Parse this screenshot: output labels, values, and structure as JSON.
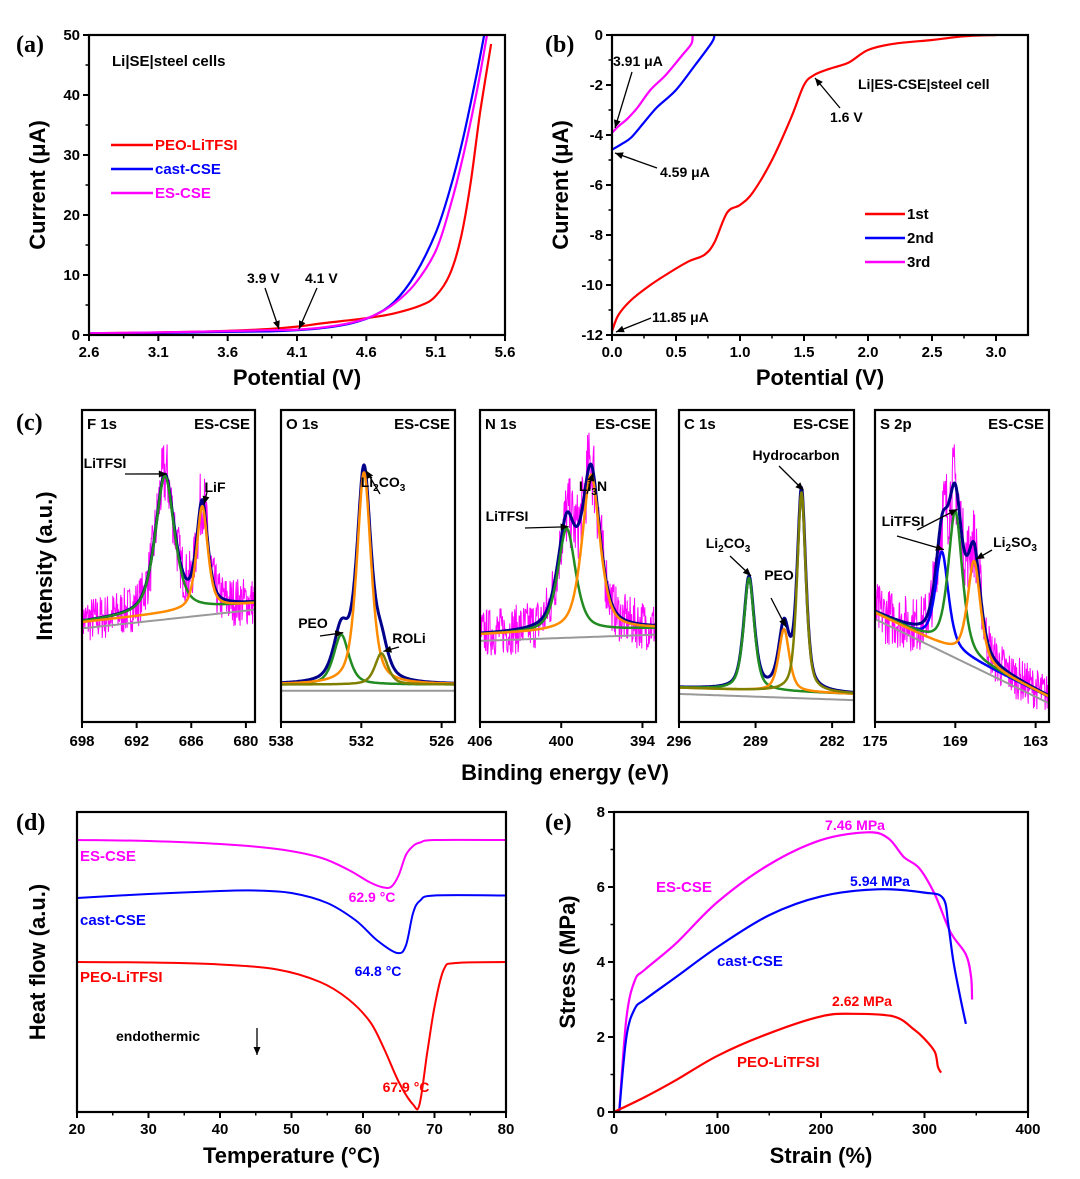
{
  "figure": {
    "panels": [
      "(a)",
      "(b)",
      "(c)",
      "(d)",
      "(e)"
    ]
  },
  "chart_data": [
    {
      "id": "a",
      "type": "line",
      "panel_label": "(a)",
      "title": "Li|SE|steel cells",
      "xlabel": "Potential (V)",
      "ylabel": "Current (μA)",
      "xlim": [
        2.6,
        5.6
      ],
      "ylim": [
        0,
        50
      ],
      "xticks": [
        "2.6",
        "3.1",
        "3.6",
        "4.1",
        "4.6",
        "5.1",
        "5.6"
      ],
      "yticks": [
        "0",
        "10",
        "20",
        "30",
        "40",
        "50"
      ],
      "legend_position": "center-left",
      "series": [
        {
          "name": "PEO-LiTFSI",
          "color": "#ff0000",
          "x": [
            2.6,
            3.0,
            3.5,
            3.9,
            4.1,
            4.3,
            4.6,
            4.8,
            5.0,
            5.1,
            5.2,
            5.28,
            5.35,
            5.42,
            5.5
          ],
          "y": [
            0.3,
            0.4,
            0.6,
            1.0,
            1.4,
            2.0,
            2.8,
            3.6,
            5.0,
            6.5,
            10,
            16,
            25,
            37,
            48.5
          ]
        },
        {
          "name": "cast-CSE",
          "color": "#0000ff",
          "x": [
            2.6,
            3.0,
            3.5,
            3.9,
            4.1,
            4.3,
            4.5,
            4.65,
            4.8,
            4.95,
            5.1,
            5.2,
            5.3,
            5.4,
            5.45
          ],
          "y": [
            0.3,
            0.3,
            0.5,
            0.6,
            0.8,
            1.2,
            2.0,
            3.2,
            5.5,
            10,
            17,
            24,
            33,
            44,
            50
          ]
        },
        {
          "name": "ES-CSE",
          "color": "#ff00ff",
          "x": [
            2.6,
            3.0,
            3.5,
            3.9,
            4.1,
            4.3,
            4.5,
            4.65,
            4.8,
            4.95,
            5.1,
            5.2,
            5.3,
            5.4,
            5.47
          ],
          "y": [
            0.3,
            0.4,
            0.6,
            0.8,
            0.9,
            1.3,
            2.1,
            3.2,
            5.2,
            8.5,
            14,
            21,
            30,
            41,
            50
          ]
        }
      ],
      "annotations": [
        {
          "text": "3.9 V",
          "x": 3.96,
          "y": 0.9
        },
        {
          "text": "4.1 V",
          "x": 4.1,
          "y": 1.3
        }
      ]
    },
    {
      "id": "b",
      "type": "line",
      "panel_label": "(b)",
      "title": "Li|ES-CSE|steel cell",
      "xlabel": "Potential (V)",
      "ylabel": "Current (μA)",
      "xlim": [
        0,
        3.25
      ],
      "ylim": [
        -12,
        0
      ],
      "xticks": [
        "0.0",
        "0.5",
        "1.0",
        "1.5",
        "2.0",
        "2.5",
        "3.0"
      ],
      "yticks": [
        "-12",
        "-10",
        "-8",
        "-6",
        "-4",
        "-2",
        "0"
      ],
      "legend_position": "bottom-right",
      "series": [
        {
          "name": "1st",
          "color": "#ff0000",
          "x": [
            0,
            0.05,
            0.15,
            0.3,
            0.45,
            0.6,
            0.72,
            0.8,
            0.9,
            1.0,
            1.1,
            1.25,
            1.4,
            1.5,
            1.58,
            1.7,
            1.85,
            2.0,
            2.2,
            2.5,
            2.75,
            3.0
          ],
          "y": [
            -11.85,
            -11.2,
            -10.6,
            -10.0,
            -9.5,
            -9.05,
            -8.8,
            -8.3,
            -7.1,
            -6.8,
            -6.3,
            -5.0,
            -3.3,
            -2.0,
            -1.6,
            -1.35,
            -1.1,
            -0.6,
            -0.35,
            -0.2,
            -0.05,
            0
          ]
        },
        {
          "name": "2nd",
          "color": "#0000ff",
          "x": [
            0,
            0.08,
            0.15,
            0.25,
            0.35,
            0.5,
            0.65,
            0.78,
            0.8
          ],
          "y": [
            -4.59,
            -4.35,
            -4.1,
            -3.5,
            -2.9,
            -2.2,
            -1.2,
            -0.3,
            0
          ]
        },
        {
          "name": "3rd",
          "color": "#ff00ff",
          "x": [
            0,
            0.05,
            0.12,
            0.2,
            0.3,
            0.42,
            0.55,
            0.62,
            0.63
          ],
          "y": [
            -3.91,
            -3.65,
            -3.35,
            -2.9,
            -2.2,
            -1.6,
            -0.8,
            -0.35,
            0
          ]
        }
      ],
      "annotations": [
        {
          "text": "3.91 μA",
          "x": 0.0,
          "y": -3.91
        },
        {
          "text": "4.59 μA",
          "x": 0.0,
          "y": -4.59
        },
        {
          "text": "11.85 μA",
          "x": 0.0,
          "y": -11.85
        },
        {
          "text": "1.6 V",
          "x": 1.58,
          "y": -1.6
        }
      ]
    },
    {
      "id": "c",
      "type": "line",
      "panel_label": "(c)",
      "xlabel": "Binding energy (eV)",
      "ylabel": "Intensity (a.u.)",
      "subplots": [
        {
          "name": "F 1s",
          "sample": "ES-CSE",
          "xlim": [
            698,
            679
          ],
          "xticks": [
            "698",
            "692",
            "686",
            "680"
          ],
          "peaks": [
            {
              "label": "LiTFSI",
              "center": 688.9,
              "color": "#228b22"
            },
            {
              "label": "LiF",
              "center": 684.8,
              "color": "#ff8c00"
            }
          ]
        },
        {
          "name": "O 1s",
          "sample": "ES-CSE",
          "xlim": [
            538,
            525
          ],
          "xticks": [
            "538",
            "532",
            "526"
          ],
          "peaks": [
            {
              "label": "PEO",
              "center": 533.5,
              "color": "#228b22"
            },
            {
              "label": "Li₂CO₃",
              "center": 531.8,
              "color": "#ff8c00"
            },
            {
              "label": "ROLi",
              "center": 530.5,
              "color": "#808000"
            }
          ]
        },
        {
          "name": "N 1s",
          "sample": "ES-CSE",
          "xlim": [
            406,
            393
          ],
          "xticks": [
            "406",
            "400",
            "394"
          ],
          "peaks": [
            {
              "label": "LiTFSI",
              "center": 399.6,
              "color": "#228b22"
            },
            {
              "label": "Li₃N",
              "center": 397.8,
              "color": "#ff8c00"
            }
          ]
        },
        {
          "name": "C 1s",
          "sample": "ES-CSE",
          "xlim": [
            296,
            280
          ],
          "xticks": [
            "296",
            "289",
            "282"
          ],
          "peaks": [
            {
              "label": "Li₂CO₃",
              "center": 289.6,
              "color": "#228b22"
            },
            {
              "label": "PEO",
              "center": 286.4,
              "color": "#ff8c00"
            },
            {
              "label": "Hydrocarbon",
              "center": 284.8,
              "color": "#808000"
            }
          ]
        },
        {
          "name": "S 2p",
          "sample": "ES-CSE",
          "xlim": [
            175,
            162
          ],
          "xticks": [
            "175",
            "169",
            "163"
          ],
          "peaks": [
            {
              "label": "LiTFSI",
              "center": 170.0,
              "color": "#0000ff"
            },
            {
              "label": "LiTFSI",
              "center": 169.0,
              "color": "#228b22"
            },
            {
              "label": "Li₂SO₃",
              "center": 167.6,
              "color": "#ff8c00"
            }
          ]
        }
      ],
      "colors": {
        "raw": "#ff00ff",
        "envelope": "#00008b",
        "background": "#999999"
      }
    },
    {
      "id": "d",
      "type": "line",
      "panel_label": "(d)",
      "xlabel": "Temperature (°C)",
      "ylabel": "Heat flow (a.u.)",
      "xlim": [
        20,
        80
      ],
      "xticks": [
        "20",
        "30",
        "40",
        "50",
        "60",
        "70",
        "80"
      ],
      "annotation_text": "endothermic",
      "series": [
        {
          "name": "ES-CSE",
          "color": "#ff00ff",
          "peak_label": "62.9 °C",
          "peak": 62.9,
          "x": [
            20,
            30,
            40,
            48,
            54,
            58,
            61,
            62.9,
            64,
            65,
            66,
            67,
            68,
            70,
            80
          ],
          "y": [
            0,
            -0.02,
            -0.08,
            -0.18,
            -0.35,
            -0.6,
            -0.85,
            -0.95,
            -0.93,
            -0.7,
            -0.3,
            -0.12,
            -0.05,
            0,
            0
          ]
        },
        {
          "name": "cast-CSE",
          "color": "#0000ff",
          "peak_label": "64.8 °C",
          "peak": 64.8,
          "x": [
            20,
            30,
            40,
            45,
            50,
            55,
            59,
            62,
            64.8,
            66,
            67,
            68,
            70,
            80
          ],
          "y": [
            0,
            0.08,
            0.14,
            0.15,
            0.1,
            -0.1,
            -0.45,
            -0.85,
            -1.1,
            -0.95,
            -0.3,
            -0.05,
            0.05,
            0.05
          ]
        },
        {
          "name": "PEO-LiTFSI",
          "color": "#ff0000",
          "peak_label": "67.9 °C",
          "peak": 67.9,
          "x": [
            20,
            30,
            40,
            48,
            54,
            58,
            61,
            63,
            65,
            67,
            67.9,
            69,
            70,
            71.3,
            73,
            80
          ],
          "y": [
            0,
            -0.01,
            -0.05,
            -0.15,
            -0.4,
            -0.75,
            -1.2,
            -1.75,
            -2.4,
            -2.85,
            -2.85,
            -1.8,
            -0.9,
            -0.15,
            -0.02,
            0
          ]
        }
      ]
    },
    {
      "id": "e",
      "type": "line",
      "panel_label": "(e)",
      "xlabel": "Strain (%)",
      "ylabel": "Stress (MPa)",
      "xlim": [
        0,
        400
      ],
      "ylim": [
        0,
        8
      ],
      "xticks": [
        "0",
        "100",
        "200",
        "300",
        "400"
      ],
      "yticks": [
        "0",
        "2",
        "4",
        "6",
        "8"
      ],
      "series": [
        {
          "name": "ES-CSE",
          "color": "#ff00ff",
          "max_label": "7.46 MPa",
          "max": 7.46,
          "x": [
            5,
            12,
            20,
            30,
            60,
            100,
            150,
            200,
            245,
            265,
            280,
            295,
            310,
            325,
            340,
            345,
            346
          ],
          "y": [
            0,
            2.5,
            3.5,
            3.8,
            4.5,
            5.6,
            6.6,
            7.25,
            7.46,
            7.3,
            6.8,
            6.5,
            5.8,
            4.8,
            4.2,
            3.6,
            3.0
          ]
        },
        {
          "name": "cast-CSE",
          "color": "#0000ff",
          "max_label": "5.94 MPa",
          "max": 5.94,
          "x": [
            5,
            12,
            20,
            30,
            60,
            100,
            150,
            200,
            255,
            300,
            318,
            323,
            328,
            335,
            340
          ],
          "y": [
            0,
            2.0,
            2.75,
            3.0,
            3.6,
            4.4,
            5.25,
            5.75,
            5.94,
            5.85,
            5.7,
            5.0,
            4.0,
            3.0,
            2.35
          ]
        },
        {
          "name": "PEO-LiTFSI",
          "color": "#ff0000",
          "max_label": "2.62 MPa",
          "max": 2.62,
          "x": [
            0,
            30,
            60,
            100,
            150,
            200,
            230,
            270,
            290,
            300,
            310,
            313,
            316
          ],
          "y": [
            0,
            0.4,
            0.85,
            1.5,
            2.1,
            2.55,
            2.62,
            2.55,
            2.2,
            1.95,
            1.6,
            1.2,
            1.05
          ]
        }
      ]
    }
  ]
}
